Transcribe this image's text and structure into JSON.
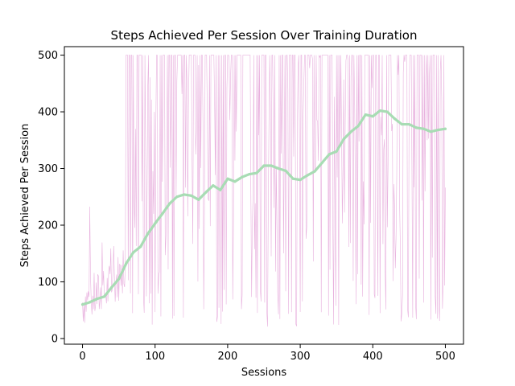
{
  "chart_data": {
    "type": "line",
    "title": "Steps Achieved Per Session Over Training Duration",
    "xlabel": "Sessions",
    "ylabel": "Steps Achieved Per Session",
    "xlim": [
      -25,
      525
    ],
    "ylim": [
      -10,
      515
    ],
    "xticks": [
      0,
      100,
      200,
      300,
      400,
      500
    ],
    "yticks": [
      0,
      100,
      200,
      300,
      400,
      500
    ],
    "grid": false,
    "series": [
      {
        "role": "raw",
        "color": "#e6a8da",
        "description_of_shape": "noisy per-session steps; frequent spikes to the 500 cap after ~80 sessions",
        "x_step": 1
      },
      {
        "role": "smoothed",
        "color": "#a8dcb4",
        "x": [
          0,
          10,
          20,
          30,
          40,
          50,
          60,
          70,
          80,
          90,
          100,
          110,
          120,
          130,
          140,
          150,
          160,
          170,
          180,
          190,
          200,
          210,
          220,
          230,
          240,
          250,
          260,
          270,
          280,
          290,
          300,
          310,
          320,
          330,
          340,
          350,
          360,
          370,
          380,
          390,
          400,
          410,
          420,
          430,
          440,
          450,
          460,
          470,
          480,
          490,
          500
        ],
        "values": [
          60,
          64,
          70,
          74,
          90,
          105,
          132,
          152,
          162,
          185,
          203,
          220,
          238,
          250,
          254,
          252,
          245,
          258,
          270,
          262,
          282,
          277,
          285,
          290,
          292,
          305,
          305,
          300,
          296,
          282,
          280,
          288,
          295,
          310,
          325,
          330,
          352,
          365,
          375,
          395,
          392,
          402,
          400,
          388,
          378,
          378,
          372,
          370,
          365,
          368,
          370
        ]
      }
    ]
  }
}
